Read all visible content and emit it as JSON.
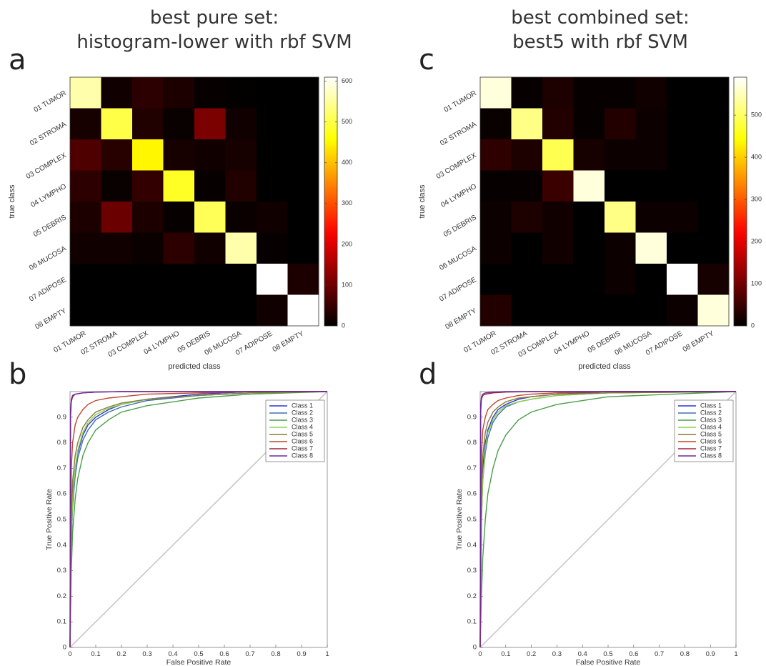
{
  "panels": {
    "a": {
      "letter": "a",
      "title_line1": "best pure set:",
      "title_line2": "histogram-lower with rbf SVM"
    },
    "c": {
      "letter": "c",
      "title_line1": "best combined set:",
      "title_line2": "best5 with rbf SVM"
    },
    "b": {
      "letter": "b"
    },
    "d": {
      "letter": "d"
    }
  },
  "chart_data": [
    {
      "id": "a",
      "type": "heatmap",
      "xlabel": "predicted class",
      "ylabel": "true class",
      "categories": [
        "01 TUMOR",
        "02 STROMA",
        "03 COMPLEX",
        "04 LYMPHO",
        "05 DEBRIS",
        "06 MUCOSA",
        "07 ADIPOSE",
        "08 EMPTY"
      ],
      "colormap": "hot",
      "colorbar_range": [
        0,
        610
      ],
      "colorbar_ticks": [
        0,
        100,
        200,
        300,
        400,
        500,
        600
      ],
      "values": [
        [
          560,
          15,
          40,
          25,
          5,
          3,
          0,
          0
        ],
        [
          20,
          500,
          30,
          8,
          110,
          15,
          0,
          0
        ],
        [
          70,
          35,
          450,
          20,
          15,
          20,
          0,
          0
        ],
        [
          40,
          8,
          45,
          480,
          5,
          30,
          0,
          0
        ],
        [
          25,
          95,
          25,
          5,
          510,
          10,
          15,
          0
        ],
        [
          15,
          15,
          10,
          40,
          15,
          560,
          5,
          0
        ],
        [
          0,
          0,
          0,
          0,
          0,
          0,
          610,
          25
        ],
        [
          0,
          0,
          0,
          0,
          0,
          0,
          15,
          615
        ]
      ]
    },
    {
      "id": "c",
      "type": "heatmap",
      "xlabel": "predicted class",
      "ylabel": "true class",
      "categories": [
        "01 TUMOR",
        "02 STROMA",
        "03 COMPLEX",
        "04 LYMPHO",
        "05 DEBRIS",
        "06 MUCOSA",
        "07 ADIPOSE",
        "08 EMPTY"
      ],
      "colormap": "hot",
      "colorbar_range": [
        0,
        590
      ],
      "colorbar_ticks": [
        0,
        100,
        200,
        300,
        400,
        500
      ],
      "values": [
        [
          570,
          5,
          25,
          5,
          5,
          15,
          0,
          0
        ],
        [
          8,
          520,
          30,
          5,
          30,
          10,
          0,
          0
        ],
        [
          40,
          25,
          490,
          20,
          10,
          10,
          0,
          0
        ],
        [
          5,
          5,
          50,
          570,
          0,
          0,
          0,
          0
        ],
        [
          10,
          25,
          15,
          0,
          520,
          10,
          10,
          0
        ],
        [
          10,
          0,
          15,
          0,
          10,
          570,
          0,
          0
        ],
        [
          0,
          0,
          0,
          0,
          10,
          0,
          590,
          20
        ],
        [
          30,
          0,
          0,
          0,
          0,
          0,
          10,
          570
        ]
      ]
    },
    {
      "id": "b",
      "type": "line",
      "xlabel": "False Positive Rate",
      "ylabel": "True Positive Rate",
      "xlim": [
        0,
        1
      ],
      "ylim": [
        0,
        1
      ],
      "xticks": [
        "0",
        "0.1",
        "0.2",
        "0.3",
        "0.4",
        "0.5",
        "0.6",
        "0.7",
        "0.8",
        "0.9",
        "1"
      ],
      "yticks": [
        "0",
        "0.1",
        "0.2",
        "0.3",
        "0.4",
        "0.5",
        "0.6",
        "0.7",
        "0.8",
        "0.9"
      ],
      "legend_position": "top-right",
      "series": [
        {
          "name": "Class 1",
          "color": "#2b35d8",
          "x": [
            0,
            0.005,
            0.01,
            0.02,
            0.03,
            0.05,
            0.07,
            0.1,
            0.15,
            0.2,
            0.3,
            0.5,
            0.7,
            1
          ],
          "y": [
            0,
            0.45,
            0.6,
            0.7,
            0.76,
            0.83,
            0.87,
            0.9,
            0.93,
            0.95,
            0.97,
            0.99,
            1,
            1
          ]
        },
        {
          "name": "Class 2",
          "color": "#3e6fb0",
          "x": [
            0,
            0.005,
            0.01,
            0.02,
            0.03,
            0.05,
            0.07,
            0.1,
            0.15,
            0.2,
            0.3,
            0.5,
            0.7,
            1
          ],
          "y": [
            0,
            0.4,
            0.55,
            0.67,
            0.74,
            0.81,
            0.85,
            0.89,
            0.92,
            0.94,
            0.965,
            0.985,
            0.995,
            1
          ]
        },
        {
          "name": "Class 3",
          "color": "#4a9e4a",
          "x": [
            0,
            0.005,
            0.01,
            0.02,
            0.03,
            0.05,
            0.07,
            0.1,
            0.15,
            0.2,
            0.3,
            0.5,
            0.7,
            1
          ],
          "y": [
            0,
            0.3,
            0.45,
            0.58,
            0.66,
            0.75,
            0.8,
            0.85,
            0.89,
            0.92,
            0.945,
            0.975,
            0.99,
            1
          ]
        },
        {
          "name": "Class 4",
          "color": "#8cd24a",
          "x": [
            0,
            0.005,
            0.01,
            0.02,
            0.03,
            0.05,
            0.07,
            0.1,
            0.15,
            0.2,
            0.3,
            0.5,
            0.7,
            1
          ],
          "y": [
            0,
            0.42,
            0.58,
            0.7,
            0.77,
            0.84,
            0.88,
            0.91,
            0.935,
            0.95,
            0.97,
            0.985,
            0.995,
            1
          ]
        },
        {
          "name": "Class 5",
          "color": "#8a7a36",
          "x": [
            0,
            0.005,
            0.01,
            0.02,
            0.03,
            0.05,
            0.07,
            0.1,
            0.15,
            0.2,
            0.3,
            0.5,
            0.7,
            1
          ],
          "y": [
            0,
            0.5,
            0.65,
            0.75,
            0.8,
            0.86,
            0.89,
            0.92,
            0.94,
            0.955,
            0.97,
            0.985,
            0.995,
            1
          ]
        },
        {
          "name": "Class 6",
          "color": "#c0462a",
          "x": [
            0,
            0.005,
            0.01,
            0.02,
            0.03,
            0.05,
            0.07,
            0.1,
            0.15,
            0.2,
            0.3,
            0.5,
            0.7,
            1
          ],
          "y": [
            0,
            0.7,
            0.8,
            0.87,
            0.9,
            0.93,
            0.95,
            0.965,
            0.975,
            0.98,
            0.99,
            0.995,
            1,
            1
          ]
        },
        {
          "name": "Class 7",
          "color": "#a0203a",
          "x": [
            0,
            0.002,
            0.005,
            0.01,
            0.02,
            0.05,
            0.1,
            0.2,
            0.5,
            1
          ],
          "y": [
            0,
            0.9,
            0.96,
            0.98,
            0.99,
            0.995,
            0.998,
            1,
            1,
            1
          ]
        },
        {
          "name": "Class 8",
          "color": "#6a2a9a",
          "x": [
            0,
            0.002,
            0.005,
            0.01,
            0.02,
            0.05,
            0.1,
            0.2,
            0.5,
            1
          ],
          "y": [
            0,
            0.93,
            0.97,
            0.985,
            0.99,
            0.995,
            0.998,
            1,
            1,
            1
          ]
        },
        {
          "name": "",
          "color": "#c8c8c8",
          "x": [
            0,
            1
          ],
          "y": [
            0,
            1
          ]
        }
      ]
    },
    {
      "id": "d",
      "type": "line",
      "xlabel": "False Positive Rate",
      "ylabel": "True Positive Rate",
      "xlim": [
        0,
        1
      ],
      "ylim": [
        0,
        1
      ],
      "xticks": [
        "0",
        "0.1",
        "0.2",
        "0.3",
        "0.4",
        "0.5",
        "0.6",
        "0.7",
        "0.8",
        "0.9",
        "1"
      ],
      "yticks": [
        "0",
        "0.1",
        "0.2",
        "0.3",
        "0.4",
        "0.5",
        "0.6",
        "0.7",
        "0.8",
        "0.9"
      ],
      "legend_position": "top-right",
      "series": [
        {
          "name": "Class 1",
          "color": "#2b35d8",
          "x": [
            0,
            0.005,
            0.01,
            0.02,
            0.03,
            0.05,
            0.07,
            0.1,
            0.15,
            0.2,
            0.3,
            0.5,
            1
          ],
          "y": [
            0,
            0.55,
            0.7,
            0.8,
            0.85,
            0.9,
            0.93,
            0.95,
            0.97,
            0.98,
            0.99,
            1,
            1
          ]
        },
        {
          "name": "Class 2",
          "color": "#3e6fb0",
          "x": [
            0,
            0.005,
            0.01,
            0.02,
            0.03,
            0.05,
            0.07,
            0.1,
            0.15,
            0.2,
            0.3,
            0.5,
            1
          ],
          "y": [
            0,
            0.5,
            0.65,
            0.76,
            0.82,
            0.88,
            0.91,
            0.94,
            0.96,
            0.97,
            0.985,
            0.995,
            1
          ]
        },
        {
          "name": "Class 3",
          "color": "#4a9e4a",
          "x": [
            0,
            0.005,
            0.01,
            0.02,
            0.03,
            0.05,
            0.07,
            0.1,
            0.15,
            0.2,
            0.3,
            0.5,
            1
          ],
          "y": [
            0,
            0.2,
            0.35,
            0.5,
            0.6,
            0.7,
            0.77,
            0.83,
            0.89,
            0.92,
            0.95,
            0.98,
            1
          ]
        },
        {
          "name": "Class 4",
          "color": "#8cd24a",
          "x": [
            0,
            0.005,
            0.01,
            0.02,
            0.03,
            0.05,
            0.07,
            0.1,
            0.15,
            0.2,
            0.3,
            0.5,
            1
          ],
          "y": [
            0,
            0.5,
            0.65,
            0.78,
            0.84,
            0.89,
            0.92,
            0.945,
            0.96,
            0.97,
            0.985,
            0.995,
            1
          ]
        },
        {
          "name": "Class 5",
          "color": "#8a7a36",
          "x": [
            0,
            0.005,
            0.01,
            0.02,
            0.03,
            0.05,
            0.07,
            0.1,
            0.15,
            0.2,
            0.3,
            0.5,
            1
          ],
          "y": [
            0,
            0.6,
            0.75,
            0.84,
            0.88,
            0.92,
            0.94,
            0.96,
            0.975,
            0.98,
            0.99,
            0.995,
            1
          ]
        },
        {
          "name": "Class 6",
          "color": "#c0462a",
          "x": [
            0,
            0.005,
            0.01,
            0.02,
            0.03,
            0.05,
            0.07,
            0.1,
            0.15,
            0.2,
            0.3,
            0.5,
            1
          ],
          "y": [
            0,
            0.75,
            0.85,
            0.9,
            0.93,
            0.95,
            0.965,
            0.975,
            0.985,
            0.99,
            0.995,
            1,
            1
          ]
        },
        {
          "name": "Class 7",
          "color": "#a0203a",
          "x": [
            0,
            0.002,
            0.005,
            0.01,
            0.02,
            0.05,
            0.1,
            0.2,
            0.5,
            1
          ],
          "y": [
            0,
            0.92,
            0.97,
            0.985,
            0.99,
            0.995,
            0.998,
            1,
            1,
            1
          ]
        },
        {
          "name": "Class 8",
          "color": "#6a2a9a",
          "x": [
            0,
            0.002,
            0.005,
            0.01,
            0.02,
            0.05,
            0.1,
            0.2,
            0.5,
            1
          ],
          "y": [
            0,
            0.95,
            0.98,
            0.99,
            0.995,
            0.998,
            1,
            1,
            1,
            1
          ]
        },
        {
          "name": "",
          "color": "#c8c8c8",
          "x": [
            0,
            1
          ],
          "y": [
            0,
            1
          ]
        }
      ]
    }
  ]
}
